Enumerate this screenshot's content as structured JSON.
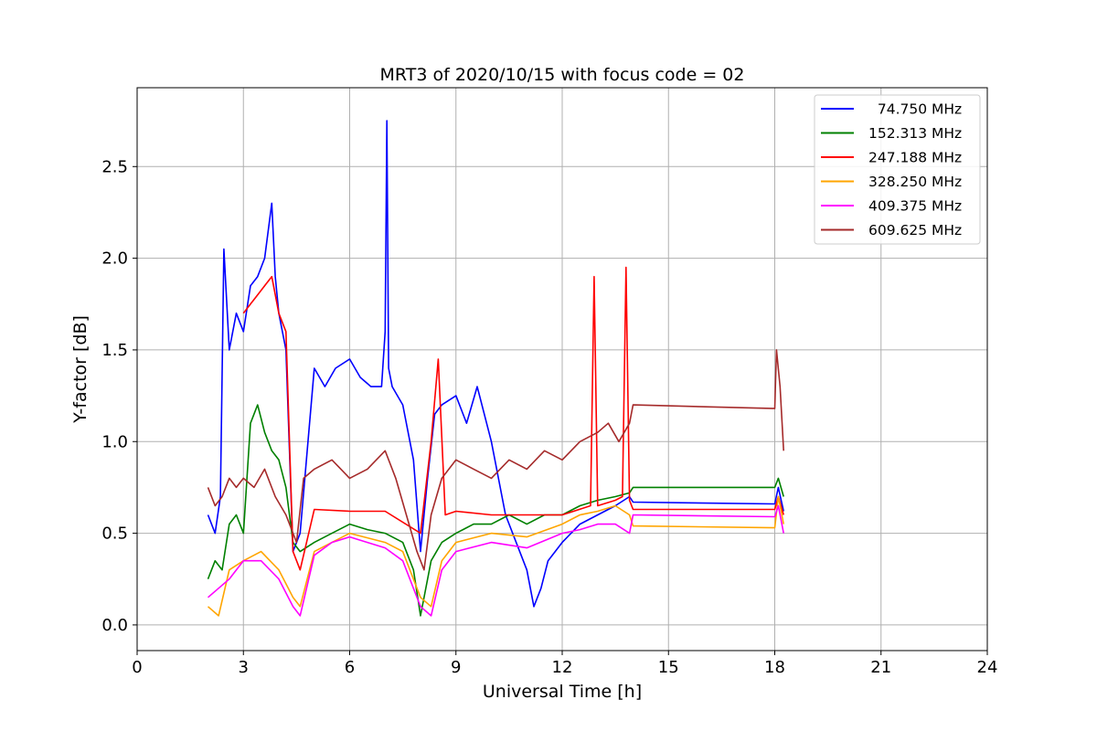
{
  "chart_data": {
    "type": "line",
    "title": "MRT3 of 2020/10/15 with focus code = 02",
    "xlabel": "Universal Time [h]",
    "ylabel": "Y-factor [dB]",
    "xlim": [
      0,
      24
    ],
    "ylim": [
      -0.14,
      2.93
    ],
    "xticks": [
      0,
      3,
      6,
      9,
      12,
      15,
      18,
      21,
      24
    ],
    "xtick_labels": [
      "0",
      "3",
      "6",
      "9",
      "12",
      "15",
      "18",
      "21",
      "24"
    ],
    "yticks": [
      0.0,
      0.5,
      1.0,
      1.5,
      2.0,
      2.5
    ],
    "ytick_labels": [
      "0.0",
      "0.5",
      "1.0",
      "1.5",
      "2.0",
      "2.5"
    ],
    "grid": true,
    "legend_position": "top-right",
    "series": [
      {
        "name": "  74.750 MHz",
        "color": "#0000ff",
        "x": [
          2.0,
          2.2,
          2.35,
          2.45,
          2.6,
          2.8,
          3.0,
          3.2,
          3.4,
          3.6,
          3.8,
          3.9,
          4.0,
          4.2,
          4.4,
          4.6,
          5.0,
          5.3,
          5.6,
          6.0,
          6.3,
          6.6,
          6.9,
          7.0,
          7.05,
          7.1,
          7.2,
          7.5,
          7.8,
          8.0,
          8.2,
          8.4,
          8.6,
          9.0,
          9.3,
          9.6,
          10.0,
          10.4,
          10.8,
          11.0,
          11.2,
          11.4,
          11.6,
          12.0,
          12.5,
          13.0,
          13.5,
          13.9,
          14.0,
          18.0,
          18.1,
          18.25
        ],
        "y": [
          0.6,
          0.5,
          0.7,
          2.05,
          1.5,
          1.7,
          1.6,
          1.85,
          1.9,
          2.0,
          2.3,
          1.9,
          1.7,
          1.5,
          0.4,
          0.5,
          1.4,
          1.3,
          1.4,
          1.45,
          1.35,
          1.3,
          1.3,
          1.6,
          2.75,
          1.4,
          1.3,
          1.2,
          0.9,
          0.4,
          0.8,
          1.15,
          1.2,
          1.25,
          1.1,
          1.3,
          1.0,
          0.6,
          0.4,
          0.3,
          0.1,
          0.2,
          0.35,
          0.45,
          0.55,
          0.6,
          0.65,
          0.7,
          0.67,
          0.66,
          0.75,
          0.62
        ]
      },
      {
        "name": "152.313 MHz",
        "color": "#008000",
        "x": [
          2.0,
          2.2,
          2.4,
          2.6,
          2.8,
          3.0,
          3.2,
          3.4,
          3.6,
          3.8,
          4.0,
          4.2,
          4.4,
          4.6,
          5.0,
          5.5,
          6.0,
          6.5,
          7.0,
          7.5,
          7.8,
          8.0,
          8.3,
          8.6,
          9.0,
          9.5,
          10.0,
          10.5,
          11.0,
          11.5,
          12.0,
          12.5,
          13.0,
          13.5,
          13.9,
          14.0,
          18.0,
          18.1,
          18.25
        ],
        "y": [
          0.25,
          0.35,
          0.3,
          0.55,
          0.6,
          0.5,
          1.1,
          1.2,
          1.05,
          0.95,
          0.9,
          0.75,
          0.45,
          0.4,
          0.45,
          0.5,
          0.55,
          0.52,
          0.5,
          0.45,
          0.3,
          0.05,
          0.35,
          0.45,
          0.5,
          0.55,
          0.55,
          0.6,
          0.55,
          0.6,
          0.6,
          0.65,
          0.68,
          0.7,
          0.72,
          0.75,
          0.75,
          0.8,
          0.7
        ]
      },
      {
        "name": "247.188 MHz",
        "color": "#ff0000",
        "x": [
          3.0,
          3.2,
          3.4,
          3.6,
          3.8,
          4.0,
          4.2,
          4.4,
          4.6,
          5.0,
          6.0,
          7.0,
          8.0,
          8.3,
          8.5,
          8.7,
          9.0,
          10.0,
          11.0,
          12.0,
          12.8,
          12.9,
          13.0,
          13.5,
          13.7,
          13.8,
          13.9,
          14.0,
          18.0,
          18.1,
          18.25
        ],
        "y": [
          1.7,
          1.75,
          1.8,
          1.85,
          1.9,
          1.7,
          1.6,
          0.4,
          0.3,
          0.63,
          0.62,
          0.62,
          0.5,
          1.0,
          1.45,
          0.6,
          0.62,
          0.6,
          0.6,
          0.6,
          0.65,
          1.9,
          0.65,
          0.68,
          0.7,
          1.95,
          0.68,
          0.63,
          0.63,
          0.7,
          0.6
        ]
      },
      {
        "name": "328.250 MHz",
        "color": "#ffa500",
        "x": [
          2.0,
          2.3,
          2.6,
          3.0,
          3.5,
          4.0,
          4.4,
          4.6,
          5.0,
          5.5,
          6.0,
          7.0,
          7.5,
          8.0,
          8.3,
          8.6,
          9.0,
          10.0,
          11.0,
          12.0,
          12.5,
          13.0,
          13.5,
          13.9,
          14.0,
          18.0,
          18.1,
          18.25
        ],
        "y": [
          0.1,
          0.05,
          0.3,
          0.35,
          0.4,
          0.3,
          0.15,
          0.1,
          0.4,
          0.45,
          0.5,
          0.45,
          0.4,
          0.15,
          0.1,
          0.35,
          0.45,
          0.5,
          0.48,
          0.55,
          0.6,
          0.62,
          0.65,
          0.6,
          0.54,
          0.53,
          0.7,
          0.55
        ]
      },
      {
        "name": "409.375 MHz",
        "color": "#ff00ff",
        "x": [
          2.0,
          2.3,
          2.6,
          3.0,
          3.5,
          4.0,
          4.4,
          4.6,
          5.0,
          5.5,
          6.0,
          7.0,
          7.5,
          8.0,
          8.3,
          8.6,
          9.0,
          10.0,
          11.0,
          12.0,
          12.5,
          13.0,
          13.5,
          13.9,
          14.0,
          18.0,
          18.1,
          18.25
        ],
        "y": [
          0.15,
          0.2,
          0.25,
          0.35,
          0.35,
          0.25,
          0.1,
          0.05,
          0.38,
          0.45,
          0.48,
          0.42,
          0.35,
          0.1,
          0.05,
          0.3,
          0.4,
          0.45,
          0.42,
          0.5,
          0.52,
          0.55,
          0.55,
          0.5,
          0.6,
          0.59,
          0.65,
          0.5
        ]
      },
      {
        "name": "609.625 MHz",
        "color": "#a52a2a",
        "x": [
          2.0,
          2.2,
          2.4,
          2.6,
          2.8,
          3.0,
          3.3,
          3.6,
          3.9,
          4.2,
          4.5,
          4.7,
          5.0,
          5.5,
          6.0,
          6.5,
          7.0,
          7.3,
          7.6,
          7.9,
          8.1,
          8.3,
          8.6,
          9.0,
          9.5,
          10.0,
          10.5,
          11.0,
          11.5,
          12.0,
          12.5,
          13.0,
          13.3,
          13.6,
          13.9,
          14.0,
          18.0,
          18.05,
          18.15,
          18.25
        ],
        "y": [
          0.75,
          0.65,
          0.7,
          0.8,
          0.75,
          0.8,
          0.75,
          0.85,
          0.7,
          0.6,
          0.45,
          0.8,
          0.85,
          0.9,
          0.8,
          0.85,
          0.95,
          0.8,
          0.6,
          0.4,
          0.3,
          0.6,
          0.8,
          0.9,
          0.85,
          0.8,
          0.9,
          0.85,
          0.95,
          0.9,
          1.0,
          1.05,
          1.1,
          1.0,
          1.1,
          1.2,
          1.18,
          1.5,
          1.3,
          0.95
        ]
      }
    ]
  }
}
